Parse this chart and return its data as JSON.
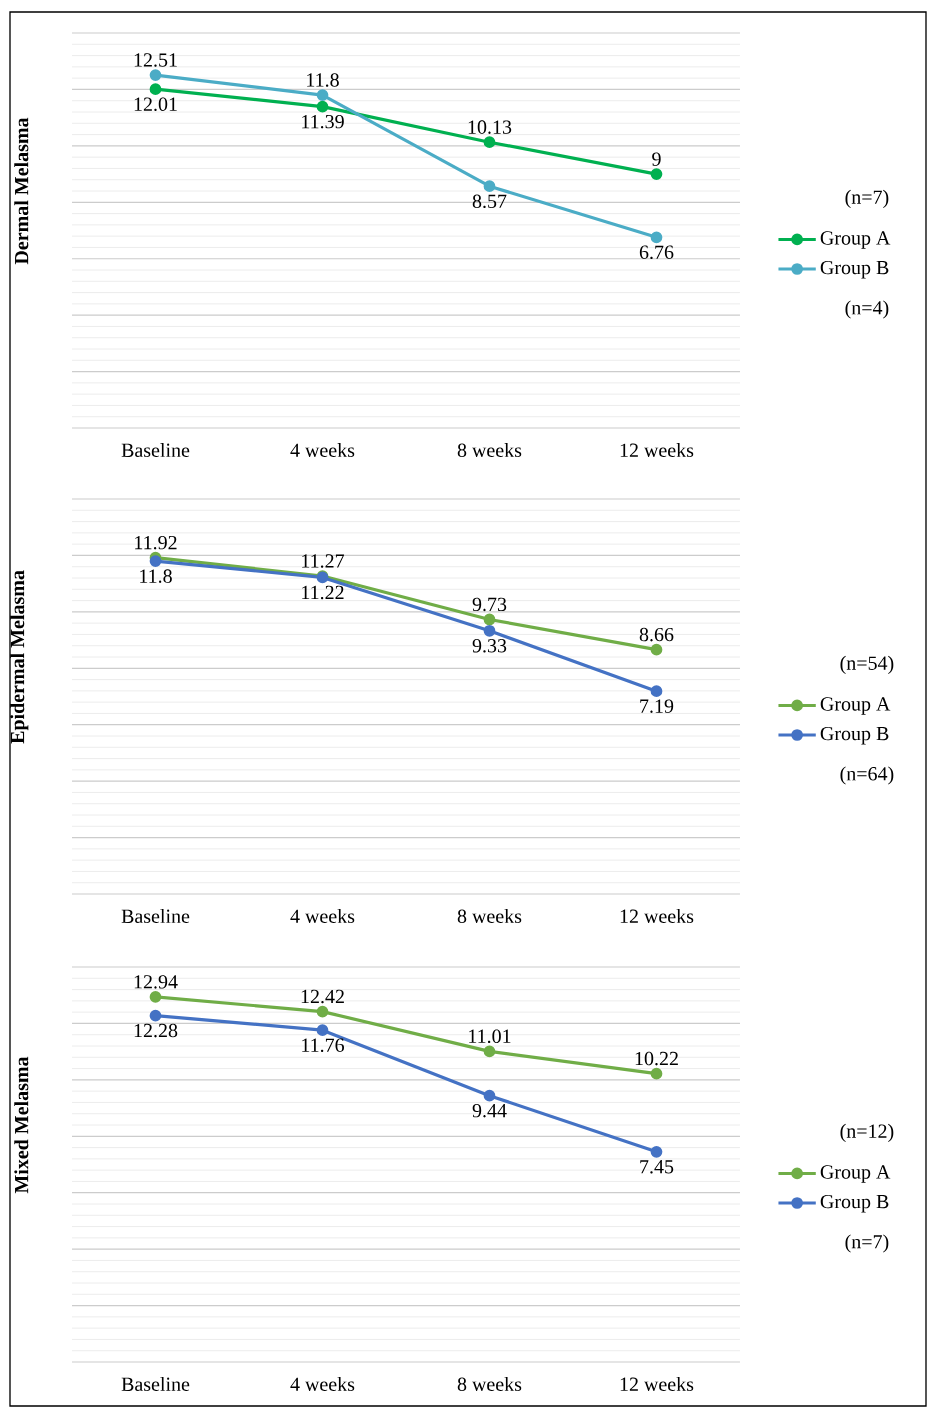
{
  "chart_data": [
    {
      "type": "line",
      "ylabel": "Dermal Melasma",
      "categories": [
        "Baseline",
        "4 weeks",
        "8 weeks",
        "12 weeks"
      ],
      "series": [
        {
          "name": "Group A",
          "color": "#00b050",
          "values": [
            12.01,
            11.39,
            10.13,
            9
          ]
        },
        {
          "name": "Group B",
          "color": "#4bacc6",
          "values": [
            12.51,
            11.8,
            8.57,
            6.76
          ]
        }
      ],
      "ylim": [
        0,
        14
      ],
      "yticks": [
        {
          "value": 0,
          "label": null
        },
        {
          "value": 2,
          "label": null
        },
        {
          "value": 4,
          "label": null
        },
        {
          "value": 6,
          "label": null
        },
        {
          "value": 8,
          "label": null
        },
        {
          "value": 10,
          "label": null
        },
        {
          "value": 12,
          "label": null
        },
        {
          "value": 14,
          "label": null
        }
      ],
      "tick_labels": "x",
      "grid": "y",
      "legend": "right",
      "marker": "circle",
      "line_style": "solid",
      "data_labels": true,
      "annotations": [
        "(n=7)",
        "(n=4)"
      ]
    },
    {
      "type": "line",
      "ylabel": "Epidermal Melasma",
      "categories": [
        "Baseline",
        "4 weeks",
        "8 weeks",
        "12 weeks"
      ],
      "series": [
        {
          "name": "Group A",
          "color": "#70ad47",
          "values": [
            11.92,
            11.27,
            9.73,
            8.66
          ]
        },
        {
          "name": "Group B",
          "color": "#4472c4",
          "values": [
            11.8,
            11.22,
            9.33,
            7.19
          ]
        }
      ],
      "ylim": [
        0,
        14
      ],
      "yticks": [
        {
          "value": 0,
          "label": null
        },
        {
          "value": 2,
          "label": null
        },
        {
          "value": 4,
          "label": null
        },
        {
          "value": 6,
          "label": null
        },
        {
          "value": 8,
          "label": null
        },
        {
          "value": 10,
          "label": null
        },
        {
          "value": 12,
          "label": null
        },
        {
          "value": 14,
          "label": null
        }
      ],
      "tick_labels": "x",
      "grid": "y",
      "legend": "right",
      "marker": "circle",
      "line_style": "solid",
      "data_labels": true,
      "annotations": [
        "(n=54)",
        "(n=64)"
      ]
    },
    {
      "type": "line",
      "ylabel": "Mixed Melasma",
      "categories": [
        "Baseline",
        "4 weeks",
        "8 weeks",
        "12 weeks"
      ],
      "series": [
        {
          "name": "Group A",
          "color": "#70ad47",
          "values": [
            12.94,
            12.42,
            11.01,
            10.22
          ]
        },
        {
          "name": "Group B",
          "color": "#4472c4",
          "values": [
            12.28,
            11.76,
            9.44,
            7.45
          ]
        }
      ],
      "ylim": [
        0,
        14
      ],
      "yticks": [
        {
          "value": 0,
          "label": null
        },
        {
          "value": 2,
          "label": null
        },
        {
          "value": 4,
          "label": null
        },
        {
          "value": 6,
          "label": null
        },
        {
          "value": 8,
          "label": null
        },
        {
          "value": 10,
          "label": null
        },
        {
          "value": 12,
          "label": null
        },
        {
          "value": 14,
          "label": null
        }
      ],
      "tick_labels": "x",
      "grid": "y",
      "legend": "right",
      "marker": "circle",
      "line_style": "solid",
      "data_labels": true,
      "annotations": [
        "(n=12)",
        "(n=7)"
      ]
    }
  ]
}
